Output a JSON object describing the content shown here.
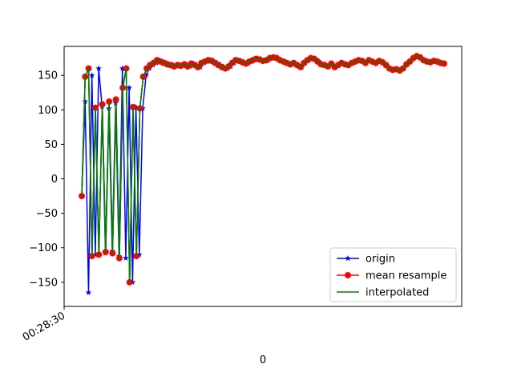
{
  "chart_data": {
    "type": "line",
    "title": "",
    "xlabel": "0",
    "ylabel": "",
    "x_tick_labels": [
      "00:28:30"
    ],
    "yticks": [
      -150,
      -100,
      -50,
      0,
      50,
      100,
      150
    ],
    "ylim": [
      -185,
      192
    ],
    "grid": false,
    "legend_position": "lower-right",
    "series": [
      {
        "name": "origin",
        "color": "#0000ff",
        "marker": "star",
        "values": [
          -25,
          112,
          -165,
          150,
          -110,
          160,
          105,
          -108,
          102,
          -105,
          110,
          -112,
          160,
          -115,
          132,
          -150,
          104,
          -110,
          102,
          150,
          160,
          165,
          168,
          172,
          170,
          168,
          166,
          165,
          163,
          165,
          164,
          166,
          163,
          167,
          165,
          162,
          168,
          170,
          172,
          171,
          168,
          165,
          162,
          160,
          163,
          168,
          172,
          171,
          169,
          167,
          170,
          172,
          174,
          173,
          171,
          172,
          175,
          176,
          175,
          172,
          170,
          168,
          166,
          168,
          165,
          162,
          168,
          172,
          175,
          174,
          170,
          166,
          165,
          163,
          167,
          162,
          165,
          168,
          166,
          165,
          168,
          170,
          172,
          171,
          168,
          172,
          170,
          168,
          171,
          169,
          165,
          160,
          158,
          159,
          157,
          160,
          166,
          170,
          175,
          178,
          176,
          172,
          170,
          169,
          171,
          170,
          168,
          167
        ]
      },
      {
        "name": "mean resample",
        "color": "#ff0000",
        "marker": "circle",
        "values": [
          -25,
          148,
          160,
          -112,
          103,
          -110,
          108,
          -106,
          112,
          -108,
          115,
          -115,
          132,
          160,
          -150,
          104,
          -112,
          102,
          148,
          160,
          165,
          168,
          172,
          170,
          168,
          166,
          165,
          163,
          165,
          164,
          166,
          163,
          167,
          165,
          162,
          168,
          170,
          172,
          171,
          168,
          165,
          162,
          160,
          163,
          168,
          172,
          171,
          169,
          167,
          170,
          172,
          174,
          173,
          171,
          172,
          175,
          176,
          175,
          172,
          170,
          168,
          166,
          168,
          165,
          162,
          168,
          172,
          175,
          174,
          170,
          166,
          165,
          163,
          167,
          162,
          165,
          168,
          166,
          165,
          168,
          170,
          172,
          171,
          168,
          172,
          170,
          168,
          171,
          169,
          165,
          160,
          158,
          159,
          157,
          160,
          166,
          170,
          175,
          178,
          176,
          172,
          170,
          169,
          171,
          170,
          168,
          167
        ]
      },
      {
        "name": "interpolated",
        "color": "#008000",
        "marker": "none",
        "values": [
          -25,
          148,
          160,
          -112,
          103,
          -110,
          108,
          -106,
          112,
          -108,
          115,
          -115,
          132,
          160,
          -150,
          104,
          -112,
          102,
          148,
          160,
          165,
          168,
          172,
          170,
          168,
          166,
          165,
          163,
          165,
          164,
          166,
          163,
          167,
          165,
          162,
          168,
          170,
          172,
          171,
          168,
          165,
          162,
          160,
          163,
          168,
          172,
          171,
          169,
          167,
          170,
          172,
          174,
          173,
          171,
          172,
          175,
          176,
          175,
          172,
          170,
          168,
          166,
          168,
          165,
          162,
          168,
          172,
          175,
          174,
          170,
          166,
          165,
          163,
          167,
          162,
          165,
          168,
          166,
          165,
          168,
          170,
          172,
          171,
          168,
          172,
          170,
          168,
          171,
          169,
          165,
          160,
          158,
          159,
          157,
          160,
          166,
          170,
          175,
          178,
          176,
          172,
          170,
          169,
          171,
          170,
          168,
          167
        ]
      }
    ]
  }
}
